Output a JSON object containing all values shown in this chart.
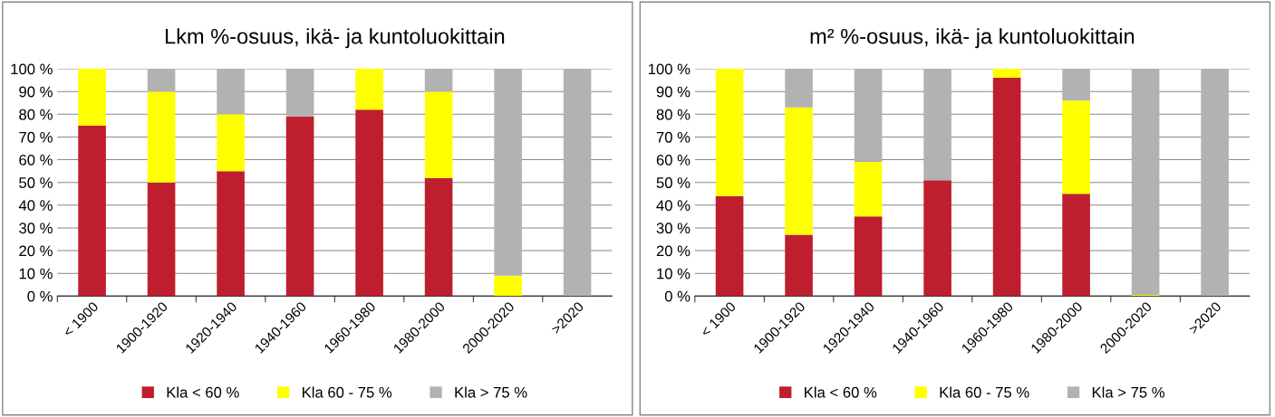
{
  "chart_data": [
    {
      "type": "bar",
      "title": "Lkm %-osuus, ikä- ja kuntoluokittain",
      "stacked": true,
      "grid": "y",
      "legend": "bottom",
      "categories": [
        "< 1900",
        "1900-1920",
        "1920-1940",
        "1940-1960",
        "1960-1980",
        "1980-2000",
        "2000-2020",
        ">2020"
      ],
      "ylim": [
        0,
        100
      ],
      "yticks": [
        {
          "value": 0,
          "label": "0 %"
        },
        {
          "value": 10,
          "label": "10 %"
        },
        {
          "value": 20,
          "label": "20 %"
        },
        {
          "value": 30,
          "label": "30 %"
        },
        {
          "value": 40,
          "label": "40 %"
        },
        {
          "value": 50,
          "label": "50 %"
        },
        {
          "value": 60,
          "label": "60 %"
        },
        {
          "value": 70,
          "label": "70 %"
        },
        {
          "value": 80,
          "label": "80 %"
        },
        {
          "value": 90,
          "label": "90 %"
        },
        {
          "value": 100,
          "label": "100 %"
        }
      ],
      "series": [
        {
          "name": "Kla < 60 %",
          "color": "#be1e2d",
          "values": [
            75,
            50,
            55,
            79,
            82,
            52,
            0,
            0
          ]
        },
        {
          "name": "Kla 60 - 75 %",
          "color": "#ffff00",
          "values": [
            25,
            40,
            25,
            0,
            18,
            38,
            9,
            0
          ]
        },
        {
          "name": "Kla > 75 %",
          "color": "#b2b2b2",
          "values": [
            0,
            10,
            20,
            21,
            0,
            10,
            91,
            100
          ]
        }
      ]
    },
    {
      "type": "bar",
      "title": "m² %-osuus, ikä- ja kuntoluokittain",
      "stacked": true,
      "grid": "y",
      "legend": "bottom",
      "categories": [
        "< 1900",
        "1900-1920",
        "1920-1940",
        "1940-1960",
        "1960-1980",
        "1980-2000",
        "2000-2020",
        ">2020"
      ],
      "ylim": [
        0,
        100
      ],
      "yticks": [
        {
          "value": 0,
          "label": "0 %"
        },
        {
          "value": 10,
          "label": "10 %"
        },
        {
          "value": 20,
          "label": "20 %"
        },
        {
          "value": 30,
          "label": "30 %"
        },
        {
          "value": 40,
          "label": "40 %"
        },
        {
          "value": 50,
          "label": "50 %"
        },
        {
          "value": 60,
          "label": "60 %"
        },
        {
          "value": 70,
          "label": "70 %"
        },
        {
          "value": 80,
          "label": "80 %"
        },
        {
          "value": 90,
          "label": "90 %"
        },
        {
          "value": 100,
          "label": "100 %"
        }
      ],
      "series": [
        {
          "name": "Kla < 60 %",
          "color": "#be1e2d",
          "values": [
            44,
            27,
            35,
            51,
            96,
            45,
            0,
            0
          ]
        },
        {
          "name": "Kla 60 - 75 %",
          "color": "#ffff00",
          "values": [
            56,
            56,
            24,
            0,
            4,
            41,
            0.5,
            0
          ]
        },
        {
          "name": "Kla > 75 %",
          "color": "#b2b2b2",
          "values": [
            0,
            17,
            41,
            49,
            0,
            14,
            99.5,
            100
          ]
        }
      ]
    }
  ]
}
